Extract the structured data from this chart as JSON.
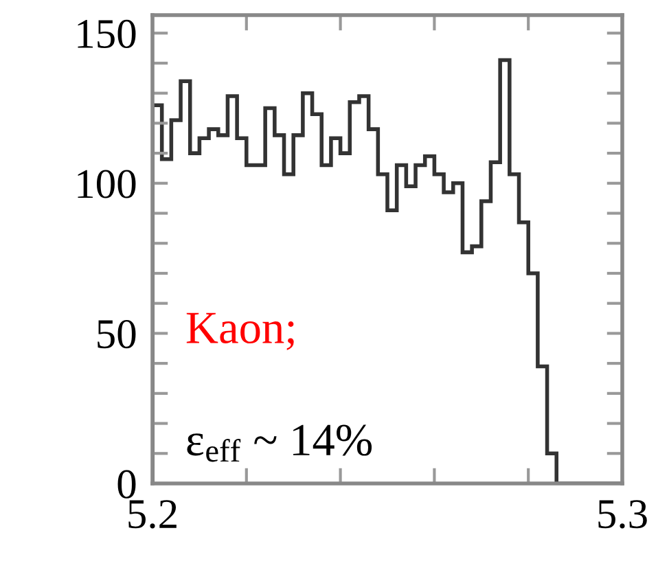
{
  "chart_data": {
    "type": "histogram",
    "color": "#333333",
    "bins": [
      5.2,
      5.202,
      5.204,
      5.206,
      5.208,
      5.21,
      5.212,
      5.214,
      5.216,
      5.218,
      5.22,
      5.222,
      5.224,
      5.226,
      5.228,
      5.23,
      5.232,
      5.234,
      5.236,
      5.238,
      5.24,
      5.242,
      5.244,
      5.246,
      5.248,
      5.25,
      5.252,
      5.254,
      5.256,
      5.258,
      5.26,
      5.262,
      5.264,
      5.266,
      5.268,
      5.27,
      5.272,
      5.274,
      5.276,
      5.278,
      5.28,
      5.282,
      5.284,
      5.286,
      5.288,
      5.29,
      5.292,
      5.294,
      5.296,
      5.298,
      5.3
    ],
    "values": [
      126,
      108,
      121,
      134,
      110,
      115,
      118,
      116,
      129,
      115,
      106,
      106,
      125,
      116,
      103,
      116,
      130,
      123,
      106,
      115,
      110,
      127,
      129,
      118,
      103,
      91,
      106,
      99,
      106,
      109,
      103,
      97,
      100,
      77,
      79,
      94,
      107,
      141,
      103,
      87,
      70,
      39,
      10,
      0,
      0,
      0,
      0,
      0,
      0,
      0
    ],
    "xlim": [
      5.2,
      5.3
    ],
    "xticks": [
      5.2,
      {
        "value": 5.22,
        "label": null
      },
      {
        "value": 5.24,
        "label": null
      },
      {
        "value": 5.26,
        "label": null
      },
      {
        "value": 5.28,
        "label": null
      },
      5.3
    ],
    "ylim": [
      0,
      156
    ],
    "yticks": [
      0,
      {
        "value": 10,
        "label": null
      },
      {
        "value": 20,
        "label": null
      },
      {
        "value": 30,
        "label": null
      },
      {
        "value": 40,
        "label": null
      },
      50,
      {
        "value": 60,
        "label": null
      },
      {
        "value": 70,
        "label": null
      },
      {
        "value": 80,
        "label": null
      },
      {
        "value": 90,
        "label": null
      },
      100,
      {
        "value": 110,
        "label": null
      },
      {
        "value": 120,
        "label": null
      },
      {
        "value": 130,
        "label": null
      },
      {
        "value": 140,
        "label": null
      },
      150
    ],
    "grid": false,
    "annotations": [
      "Kaon;",
      "ε$_{eff}$ ~ 14%"
    ]
  }
}
